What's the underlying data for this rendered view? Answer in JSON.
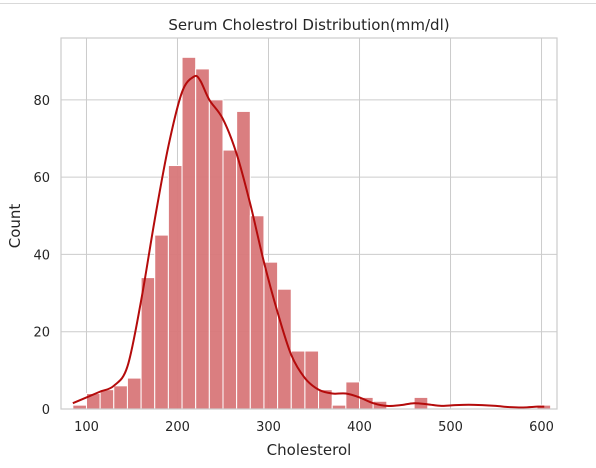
{
  "chart_data": {
    "type": "histogram",
    "title": "Serum Cholestrol Distribution(mm/dl)",
    "xlabel": "Cholesterol",
    "ylabel": "Count",
    "xlim": [
      72,
      617
    ],
    "ylim": [
      0,
      96
    ],
    "xticks": [
      100,
      200,
      300,
      400,
      500,
      600
    ],
    "yticks": [
      0,
      20,
      40,
      60,
      80
    ],
    "grid": true,
    "bar_color": "#d87779",
    "bar_edge_color": "#ffffff",
    "kde_color": "#b40b0b",
    "bins": [
      {
        "x0": 85,
        "x1": 100,
        "count": 1
      },
      {
        "x0": 100,
        "x1": 115,
        "count": 4
      },
      {
        "x0": 115,
        "x1": 130,
        "count": 5
      },
      {
        "x0": 130,
        "x1": 145,
        "count": 6
      },
      {
        "x0": 145,
        "x1": 160,
        "count": 8
      },
      {
        "x0": 160,
        "x1": 175,
        "count": 34
      },
      {
        "x0": 175,
        "x1": 190,
        "count": 45
      },
      {
        "x0": 190,
        "x1": 205,
        "count": 63
      },
      {
        "x0": 205,
        "x1": 220,
        "count": 91
      },
      {
        "x0": 220,
        "x1": 235,
        "count": 88
      },
      {
        "x0": 235,
        "x1": 250,
        "count": 80
      },
      {
        "x0": 250,
        "x1": 265,
        "count": 67
      },
      {
        "x0": 265,
        "x1": 280,
        "count": 77
      },
      {
        "x0": 280,
        "x1": 295,
        "count": 50
      },
      {
        "x0": 295,
        "x1": 310,
        "count": 38
      },
      {
        "x0": 310,
        "x1": 325,
        "count": 31
      },
      {
        "x0": 325,
        "x1": 340,
        "count": 15
      },
      {
        "x0": 340,
        "x1": 355,
        "count": 15
      },
      {
        "x0": 355,
        "x1": 370,
        "count": 5
      },
      {
        "x0": 370,
        "x1": 385,
        "count": 1
      },
      {
        "x0": 385,
        "x1": 400,
        "count": 7
      },
      {
        "x0": 400,
        "x1": 415,
        "count": 3
      },
      {
        "x0": 415,
        "x1": 430,
        "count": 2
      },
      {
        "x0": 430,
        "x1": 445,
        "count": 0
      },
      {
        "x0": 445,
        "x1": 460,
        "count": 0
      },
      {
        "x0": 460,
        "x1": 475,
        "count": 3
      },
      {
        "x0": 475,
        "x1": 490,
        "count": 0
      },
      {
        "x0": 490,
        "x1": 505,
        "count": 0
      },
      {
        "x0": 505,
        "x1": 520,
        "count": 0
      },
      {
        "x0": 520,
        "x1": 535,
        "count": 0
      },
      {
        "x0": 535,
        "x1": 550,
        "count": 0
      },
      {
        "x0": 550,
        "x1": 565,
        "count": 0
      },
      {
        "x0": 565,
        "x1": 580,
        "count": 0
      },
      {
        "x0": 580,
        "x1": 595,
        "count": 0
      },
      {
        "x0": 595,
        "x1": 610,
        "count": 1
      }
    ],
    "kde_points": [
      [
        85,
        1.5
      ],
      [
        100,
        3
      ],
      [
        115,
        4.5
      ],
      [
        130,
        6
      ],
      [
        145,
        11
      ],
      [
        160,
        28
      ],
      [
        175,
        49
      ],
      [
        190,
        68
      ],
      [
        205,
        82
      ],
      [
        218,
        86
      ],
      [
        225,
        85
      ],
      [
        235,
        80
      ],
      [
        250,
        75
      ],
      [
        265,
        66
      ],
      [
        280,
        53
      ],
      [
        295,
        38
      ],
      [
        310,
        25
      ],
      [
        325,
        14
      ],
      [
        340,
        8
      ],
      [
        355,
        5
      ],
      [
        370,
        4
      ],
      [
        385,
        4
      ],
      [
        400,
        3
      ],
      [
        415,
        1.5
      ],
      [
        430,
        0.8
      ],
      [
        445,
        1
      ],
      [
        460,
        1.5
      ],
      [
        475,
        1.2
      ],
      [
        490,
        0.8
      ],
      [
        505,
        1
      ],
      [
        520,
        1.1
      ],
      [
        535,
        1
      ],
      [
        550,
        0.8
      ],
      [
        565,
        0.5
      ],
      [
        580,
        0.4
      ],
      [
        595,
        0.6
      ],
      [
        603,
        0.6
      ]
    ]
  }
}
